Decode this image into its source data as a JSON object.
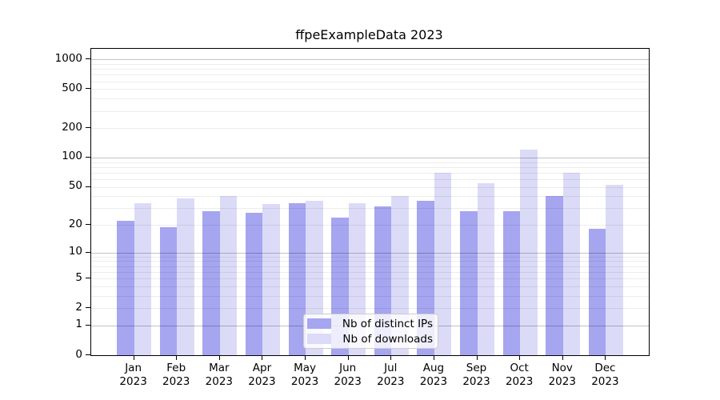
{
  "title": "ffpeExampleData 2023",
  "chart_data": {
    "type": "bar",
    "title": "ffpeExampleData 2023",
    "categories": [
      "Jan",
      "Feb",
      "Mar",
      "Apr",
      "May",
      "Jun",
      "Jul",
      "Aug",
      "Sep",
      "Oct",
      "Nov",
      "Dec"
    ],
    "year": "2023",
    "series": [
      {
        "name": "Nb of distinct IPs",
        "color": "#a5a5f0",
        "values": [
          22,
          19,
          28,
          27,
          34,
          24,
          31,
          36,
          28,
          28,
          40,
          18
        ]
      },
      {
        "name": "Nb of downloads",
        "color": "#dbdbf8",
        "values": [
          34,
          38,
          40,
          33,
          36,
          34,
          40,
          70,
          55,
          120,
          70,
          52
        ]
      }
    ],
    "xlabel": "",
    "ylabel": "",
    "yscale": "log1p",
    "y_ticks": [
      0,
      1,
      2,
      5,
      10,
      20,
      50,
      100,
      200,
      500,
      1000
    ],
    "ylim": [
      0,
      1280
    ],
    "grid": "horizontal major and minor gridlines",
    "legend_position": "lower center"
  },
  "colors": {
    "series_dark": "#a5a5f0",
    "series_light": "#dbdbf8",
    "grid_major": "#c2c2c2",
    "grid_minor": "#ededed",
    "text": "#000000",
    "background": "#ffffff"
  }
}
